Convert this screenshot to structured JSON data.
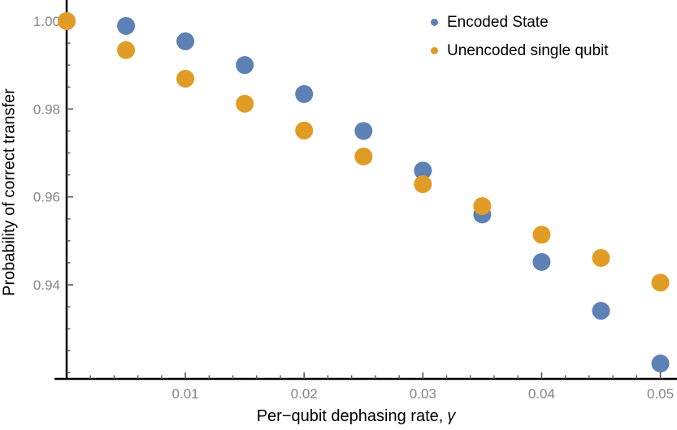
{
  "figure": {
    "ylabel": "Probability of correct transfer",
    "xlabel_text": "Per−qubit dephasing rate,",
    "xlabel_symbol": "γ"
  },
  "legend": {
    "items": [
      {
        "label": "Encoded State",
        "color": "#5E81B5"
      },
      {
        "label": "Unencoded single qubit",
        "color": "#E09C24"
      }
    ]
  },
  "chart_data": {
    "type": "scatter",
    "title": "",
    "xlabel": "Per−qubit dephasing rate, γ",
    "ylabel": "Probability of correct transfer",
    "x": [
      0,
      0.005,
      0.01,
      0.015,
      0.02,
      0.025,
      0.03,
      0.035,
      0.04,
      0.045,
      0.05
    ],
    "series": [
      {
        "name": "Encoded State",
        "color": "#5E81B5",
        "values": [
          1.0,
          0.9989,
          0.9954,
          0.99,
          0.9834,
          0.975,
          0.966,
          0.956,
          0.9452,
          0.9341,
          0.9221
        ]
      },
      {
        "name": "Unencoded single qubit",
        "color": "#E09C24",
        "values": [
          1.0,
          0.9934,
          0.9869,
          0.9812,
          0.9751,
          0.9692,
          0.9629,
          0.9579,
          0.9514,
          0.9461,
          0.9405
        ]
      }
    ],
    "xlim": [
      0,
      0.0514
    ],
    "ylim": [
      0.9186,
      1.0048
    ],
    "xticks": {
      "major": [
        0.01,
        0.02,
        0.03,
        0.04,
        0.05
      ],
      "labels": [
        "0.01",
        "0.02",
        "0.03",
        "0.04",
        "0.05"
      ],
      "minor_step": 0.002
    },
    "yticks": {
      "major": [
        1.0,
        0.98,
        0.96,
        0.94
      ],
      "labels": [
        "1.00",
        "0.98",
        "0.96",
        "0.94"
      ],
      "minor_step": 0.005,
      "minor_min": 0.92
    },
    "grid": false,
    "legend_position": "top-right",
    "marker_radius_px": 11,
    "axis_color": "#000000",
    "tick_color": "#555555",
    "tick_label_color": "#848484"
  }
}
